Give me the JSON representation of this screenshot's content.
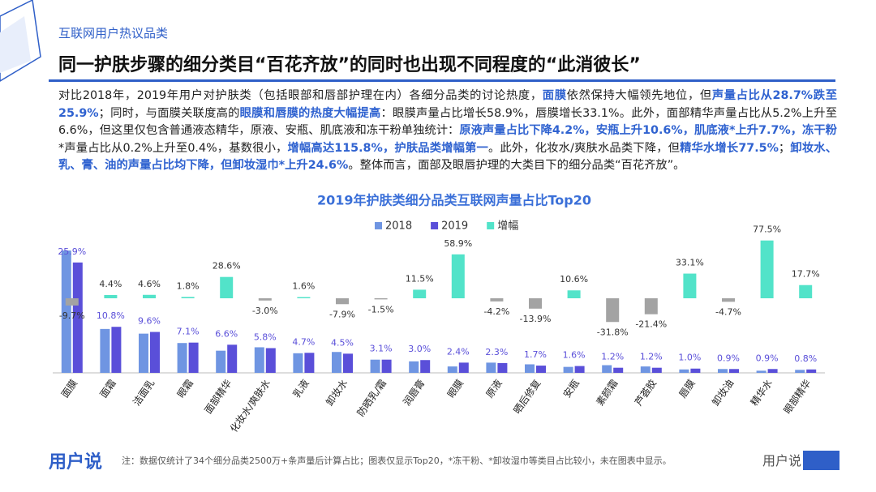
{
  "header": {
    "section": "互联网用户热议品类",
    "title": "同一护肤步骤的细分类目“百花齐放”的同时也出现不同程度的“此消彼长”"
  },
  "paragraph": {
    "segments": [
      {
        "text": "对比2018年，2019年用户对护肤类（包括眼部和唇部护理在内）各细分品类的讨论热度，",
        "em": false
      },
      {
        "text": "面膜",
        "em": true
      },
      {
        "text": "依然保持大幅领先地位，但",
        "em": false
      },
      {
        "text": "声量占比从28.7%跌至25.9%",
        "em": true
      },
      {
        "text": "；同时，与面膜关联度高的",
        "em": false
      },
      {
        "text": "眼膜和唇膜的热度大幅提高",
        "em": true
      },
      {
        "text": "：眼膜声量占比增长58.9%，唇膜增长33.1%。此外，面部精华声量占比从5.2%上升至6.6%，但这里仅包含普通液态精华，原液、安瓶、肌底液和冻干粉单独统计：",
        "em": false
      },
      {
        "text": "原液声量占比下降4.2%，安瓶上升10.6%，肌底液*上升7.7%，冻干粉",
        "em": true
      },
      {
        "text": "*声量占比从0.2%上升至0.4%，基数很小，",
        "em": false
      },
      {
        "text": "增幅高达115.8%，护肤品类增幅第一",
        "em": true
      },
      {
        "text": "。此外，化妆水/爽肤水品类下降，但",
        "em": false
      },
      {
        "text": "精华水增长77.5%",
        "em": true
      },
      {
        "text": "；",
        "em": false
      },
      {
        "text": "卸妆水、乳、膏、油的声量占比均下降，但卸妆湿巾*上升24.6%",
        "em": true
      },
      {
        "text": "。整体而言，面部及眼唇护理的大类目下的细分品类“百花齐放”。",
        "em": false
      }
    ]
  },
  "chart_data": {
    "type": "bar",
    "title": "2019年护肤类细分品类互联网声量占比Top20",
    "categories": [
      "面膜",
      "面霜",
      "洁面乳",
      "眼霜",
      "面部精华",
      "化妆水/爽肤水",
      "乳液",
      "卸妆水",
      "防晒乳/霜",
      "润唇膏",
      "眼膜",
      "原液",
      "晒后修复",
      "安瓶",
      "素颜霜",
      "芦荟胶",
      "唇膜",
      "卸妆油",
      "精华水",
      "眼部精华"
    ],
    "series": [
      {
        "name": "2018",
        "color": "#6f95e2",
        "values": [
          28.7,
          10.3,
          9.2,
          7.0,
          5.2,
          6.0,
          4.6,
          4.9,
          3.1,
          2.7,
          1.5,
          2.4,
          2.0,
          1.4,
          1.8,
          1.5,
          0.8,
          0.9,
          0.5,
          0.7
        ]
      },
      {
        "name": "2019",
        "color": "#5a4fd9",
        "values": [
          25.9,
          10.8,
          9.6,
          7.1,
          6.6,
          5.8,
          4.7,
          4.5,
          3.1,
          3.0,
          2.4,
          2.3,
          1.7,
          1.6,
          1.2,
          1.2,
          1.0,
          0.9,
          0.9,
          0.8
        ],
        "value_labels": [
          "25.9%",
          "10.8%",
          "9.6%",
          "7.1%",
          "6.6%",
          "5.8%",
          "4.7%",
          "4.5%",
          "3.1%",
          "3.0%",
          "2.4%",
          "2.3%",
          "1.7%",
          "1.6%",
          "1.2%",
          "1.2%",
          "1.0%",
          "0.9%",
          "0.9%",
          "0.8%"
        ]
      },
      {
        "name": "增幅",
        "color": "#52e3c9",
        "negative_color": "#a3a3a3",
        "axis": "y2",
        "values": [
          -9.7,
          4.4,
          4.6,
          1.8,
          28.6,
          -3.0,
          1.6,
          -7.9,
          -1.5,
          11.5,
          58.9,
          -4.2,
          -13.9,
          10.6,
          -31.8,
          -21.4,
          33.1,
          -4.7,
          77.5,
          17.7
        ],
        "value_labels": [
          "-9.7%",
          "4.4%",
          "4.6%",
          "1.8%",
          "28.6%",
          "-3.0%",
          "1.6%",
          "-7.9%",
          "-1.5%",
          "11.5%",
          "58.9%",
          "-4.2%",
          "-13.9%",
          "10.6%",
          "-31.8%",
          "-21.4%",
          "33.1%",
          "-4.7%",
          "77.5%",
          "17.7%"
        ]
      }
    ],
    "ylim": [
      0,
      35
    ],
    "y2lim": [
      -100,
      100
    ],
    "legend": "top-left"
  },
  "footer": {
    "logo": "用户说",
    "note": "注：数据仅统计了34个细分品类2500万+条声量后计算占比；图表仅显示Top20，*冻干粉、*卸妆湿巾等类目占比较小，未在图表中显示。",
    "wechat": "用户说"
  }
}
